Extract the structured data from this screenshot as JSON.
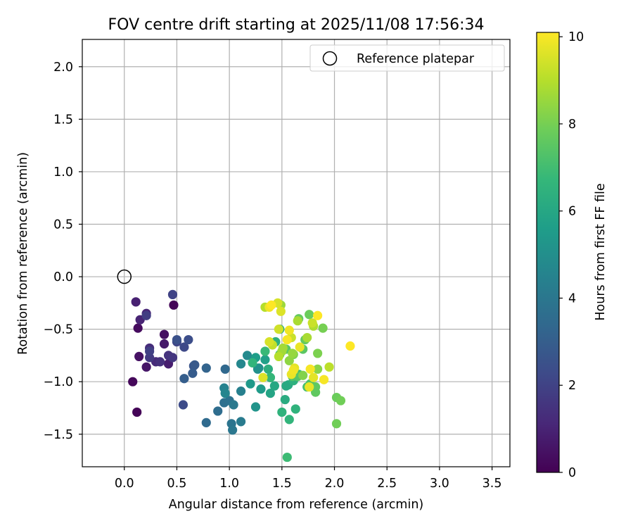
{
  "chart_data": {
    "type": "scatter",
    "title": "FOV centre drift starting at 2025/11/08 17:56:34",
    "xlabel": "Angular distance from reference (arcmin)",
    "ylabel": "Rotation from reference (arcmin)",
    "xlim": [
      -0.4,
      3.67
    ],
    "ylim": [
      -1.81,
      2.26
    ],
    "xticks": [
      0.0,
      0.5,
      1.0,
      1.5,
      2.0,
      2.5,
      3.0,
      3.5
    ],
    "yticks": [
      -1.5,
      -1.0,
      -0.5,
      0.0,
      0.5,
      1.0,
      1.5,
      2.0
    ],
    "xtick_labels": [
      "0.0",
      "0.5",
      "1.0",
      "1.5",
      "2.0",
      "2.5",
      "3.0",
      "3.5"
    ],
    "ytick_labels": [
      "−1.5",
      "−1.0",
      "−0.5",
      "0.0",
      "0.5",
      "1.0",
      "1.5",
      "2.0"
    ],
    "grid": true,
    "legend_position": "top-right",
    "legend": [
      {
        "label": "Reference platepar",
        "marker": "open-circle"
      }
    ],
    "reference_point": {
      "x": 0.0,
      "y": 0.0
    },
    "colorbar": {
      "label": "Hours from first FF file",
      "range": [
        0,
        10.1
      ],
      "ticks": [
        0,
        2,
        4,
        6,
        8,
        10
      ],
      "tick_labels": [
        "0",
        "2",
        "4",
        "6",
        "8",
        "10"
      ],
      "colormap": "viridis"
    },
    "series": [
      {
        "points": [
          [
            0.47,
            -0.27,
            0.1
          ],
          [
            0.12,
            -1.29,
            0.1
          ],
          [
            0.08,
            -1.0,
            0.2
          ],
          [
            0.13,
            -0.49,
            0.3
          ],
          [
            0.38,
            -0.55,
            0.4
          ],
          [
            0.14,
            -0.76,
            0.5
          ],
          [
            0.21,
            -0.86,
            0.6
          ],
          [
            0.38,
            -0.64,
            0.7
          ],
          [
            0.42,
            -0.83,
            0.8
          ],
          [
            0.11,
            -0.24,
            0.9
          ],
          [
            0.15,
            -0.41,
            1.0
          ],
          [
            0.21,
            -0.35,
            1.1
          ],
          [
            0.3,
            -0.81,
            1.2
          ],
          [
            0.24,
            -0.68,
            1.3
          ],
          [
            0.34,
            -0.81,
            1.4
          ],
          [
            0.42,
            -0.75,
            1.5
          ],
          [
            0.46,
            -0.77,
            1.6
          ],
          [
            0.24,
            -0.77,
            1.7
          ],
          [
            0.21,
            -0.37,
            1.8
          ],
          [
            0.24,
            -0.71,
            1.9
          ],
          [
            0.46,
            -0.17,
            2.0
          ],
          [
            0.5,
            -0.62,
            2.1
          ],
          [
            0.57,
            -0.67,
            2.2
          ],
          [
            0.56,
            -1.22,
            2.3
          ],
          [
            0.61,
            -0.6,
            2.4
          ],
          [
            0.5,
            -0.6,
            2.5
          ],
          [
            0.66,
            -0.85,
            2.6
          ],
          [
            0.67,
            -0.84,
            2.8
          ],
          [
            0.65,
            -0.92,
            2.9
          ],
          [
            0.57,
            -0.97,
            3.0
          ],
          [
            0.78,
            -0.87,
            3.2
          ],
          [
            0.96,
            -0.88,
            3.4
          ],
          [
            0.78,
            -1.39,
            3.5
          ],
          [
            0.89,
            -1.28,
            3.6
          ],
          [
            0.95,
            -1.2,
            3.7
          ],
          [
            1.0,
            -1.18,
            3.8
          ],
          [
            1.02,
            -1.4,
            3.9
          ],
          [
            1.03,
            -1.46,
            4.0
          ],
          [
            1.04,
            -1.22,
            4.1
          ],
          [
            1.11,
            -1.38,
            4.2
          ],
          [
            1.11,
            -1.09,
            4.4
          ],
          [
            0.95,
            -1.06,
            4.5
          ],
          [
            0.96,
            -1.11,
            4.6
          ],
          [
            1.11,
            -0.83,
            4.7
          ],
          [
            1.17,
            -0.75,
            4.8
          ],
          [
            1.27,
            -0.88,
            5.0
          ],
          [
            1.28,
            -0.87,
            5.1
          ],
          [
            1.25,
            -1.24,
            5.2
          ],
          [
            1.2,
            -1.02,
            5.4
          ],
          [
            1.3,
            -1.07,
            5.5
          ],
          [
            1.25,
            -0.77,
            5.6
          ],
          [
            1.34,
            -0.79,
            5.7
          ],
          [
            1.39,
            -0.96,
            5.8
          ],
          [
            1.39,
            -1.11,
            5.9
          ],
          [
            1.43,
            -1.04,
            6.0
          ],
          [
            1.54,
            -1.04,
            6.1
          ],
          [
            1.56,
            -1.03,
            6.1
          ],
          [
            1.53,
            -1.17,
            6.2
          ],
          [
            1.37,
            -0.88,
            6.3
          ],
          [
            1.48,
            -0.5,
            6.3
          ],
          [
            1.44,
            -0.62,
            6.4
          ],
          [
            1.61,
            -0.99,
            6.4
          ],
          [
            1.63,
            -1.26,
            6.5
          ],
          [
            1.5,
            -1.29,
            6.5
          ],
          [
            1.57,
            -1.36,
            6.6
          ],
          [
            1.22,
            -0.82,
            6.6
          ],
          [
            1.39,
            -0.96,
            6.7
          ],
          [
            1.34,
            -0.71,
            6.8
          ],
          [
            1.55,
            -1.72,
            6.9
          ],
          [
            1.66,
            -0.93,
            7.0
          ],
          [
            1.74,
            -1.05,
            7.1
          ],
          [
            1.77,
            -1.02,
            7.2
          ],
          [
            1.48,
            -0.74,
            7.3
          ],
          [
            1.6,
            -0.95,
            7.3
          ],
          [
            1.65,
            -0.95,
            7.4
          ],
          [
            1.54,
            -0.69,
            7.5
          ],
          [
            1.7,
            -0.69,
            7.5
          ],
          [
            1.82,
            -1.1,
            7.6
          ],
          [
            1.82,
            -1.05,
            7.6
          ],
          [
            1.72,
            -0.6,
            7.7
          ],
          [
            1.66,
            -0.4,
            7.7
          ],
          [
            1.76,
            -0.36,
            7.8
          ],
          [
            2.02,
            -1.15,
            7.8
          ],
          [
            2.06,
            -1.18,
            7.9
          ],
          [
            2.02,
            -1.4,
            7.9
          ],
          [
            1.89,
            -0.49,
            8.0
          ],
          [
            1.84,
            -0.73,
            8.1
          ],
          [
            1.61,
            -0.74,
            8.1
          ],
          [
            1.7,
            -0.94,
            8.2
          ],
          [
            1.84,
            -0.88,
            8.3
          ],
          [
            1.57,
            -0.8,
            8.4
          ],
          [
            1.6,
            -0.73,
            8.5
          ],
          [
            1.49,
            -0.27,
            8.6
          ],
          [
            1.5,
            -0.71,
            8.7
          ],
          [
            1.51,
            -0.68,
            8.7
          ],
          [
            1.65,
            -0.42,
            8.8
          ],
          [
            1.74,
            -0.58,
            8.8
          ],
          [
            1.8,
            -0.47,
            8.9
          ],
          [
            1.34,
            -0.29,
            9.0
          ],
          [
            1.47,
            -0.76,
            9.0
          ],
          [
            1.95,
            -0.86,
            9.1
          ],
          [
            1.41,
            -0.65,
            9.2
          ],
          [
            1.59,
            -0.58,
            9.3
          ],
          [
            1.79,
            -0.44,
            9.3
          ],
          [
            1.47,
            -0.5,
            9.4
          ],
          [
            1.38,
            -0.62,
            9.5
          ],
          [
            1.46,
            -0.25,
            9.5
          ],
          [
            1.49,
            -0.33,
            9.6
          ],
          [
            1.32,
            -0.96,
            9.6
          ],
          [
            1.62,
            -0.87,
            9.7
          ],
          [
            1.8,
            -0.96,
            9.7
          ],
          [
            1.76,
            -1.05,
            9.8
          ],
          [
            1.59,
            -0.93,
            9.8
          ],
          [
            1.67,
            -0.67,
            9.8
          ],
          [
            1.57,
            -0.51,
            9.9
          ],
          [
            1.38,
            -0.29,
            9.9
          ],
          [
            1.61,
            -0.89,
            9.9
          ],
          [
            1.77,
            -0.88,
            10.0
          ],
          [
            1.9,
            -0.98,
            10.0
          ],
          [
            1.55,
            -0.6,
            10.0
          ],
          [
            1.84,
            -0.37,
            10.1
          ],
          [
            2.15,
            -0.66,
            10.1
          ],
          [
            1.4,
            -0.27,
            10.1
          ]
        ]
      }
    ]
  }
}
